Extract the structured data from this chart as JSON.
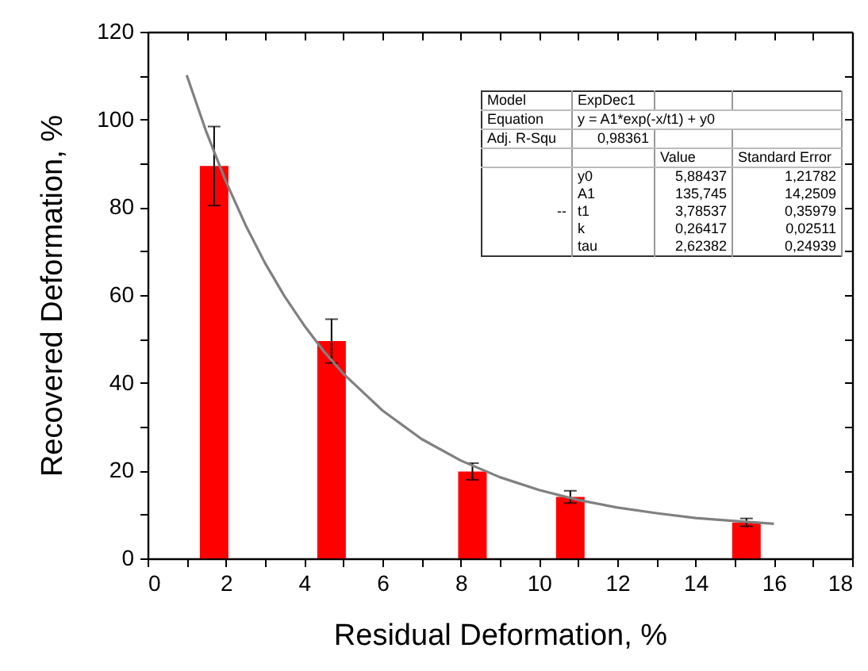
{
  "chart_data": {
    "type": "bar",
    "xlabel": "Residual Deformation, %",
    "ylabel": "Recovered Deformation, %",
    "x": [
      1.7,
      4.7,
      8.3,
      10.8,
      15.3
    ],
    "series": [
      {
        "color": "#ff0000",
        "values": [
          89.4,
          49.5,
          19.8,
          14.0,
          8.2
        ],
        "errors": [
          9,
          5,
          1.9,
          1.4,
          0.9
        ]
      },
      {
        "type": "line",
        "color": "#808080",
        "x": [
          1,
          1.5,
          2,
          2.5,
          3,
          3.5,
          4,
          4.5,
          5,
          6,
          7,
          8,
          9,
          10,
          11,
          12,
          13,
          14,
          15,
          16
        ],
        "values": [
          110.1,
          97.2,
          85.9,
          76.0,
          67.3,
          59.7,
          53.1,
          47.2,
          42.1,
          33.7,
          27.2,
          22.3,
          18.5,
          15.6,
          13.3,
          11.6,
          10.3,
          9.2,
          8.5,
          7.9
        ]
      }
    ],
    "xlim": [
      0,
      18
    ],
    "xticks": [
      0,
      {
        "value": 1,
        "label": null
      },
      2,
      {
        "value": 3,
        "label": null
      },
      4,
      {
        "value": 5,
        "label": null
      },
      6,
      {
        "value": 7,
        "label": null
      },
      8,
      {
        "value": 9,
        "label": null
      },
      10,
      {
        "value": 11,
        "label": null
      },
      12,
      {
        "value": 13,
        "label": null
      },
      14,
      {
        "value": 15,
        "label": null
      },
      16,
      {
        "value": 17,
        "label": null
      },
      18
    ],
    "ylim": [
      0,
      120
    ],
    "yticks": [
      0,
      {
        "value": 10,
        "label": null
      },
      20,
      {
        "value": 30,
        "label": null
      },
      40,
      {
        "value": 50,
        "label": null
      },
      60,
      {
        "value": 70,
        "label": null
      },
      80,
      {
        "value": 90,
        "label": null
      },
      100,
      {
        "value": 110,
        "label": null
      },
      120
    ],
    "grid": false,
    "annotations": [
      "Model",
      "ExpDec1",
      "Equation",
      "y = A1*exp(-x/t1) + y0",
      "Adj. R-Squ",
      "0,98361",
      "Value",
      "Standard Error",
      "--",
      "y0",
      "5,88437",
      "1,21782",
      "A1",
      "135,745",
      "14,2509",
      "t1",
      "3,78537",
      "0,35979",
      "k",
      "0,26417",
      "0,02511",
      "tau",
      "2,62382",
      "0,24939"
    ]
  }
}
